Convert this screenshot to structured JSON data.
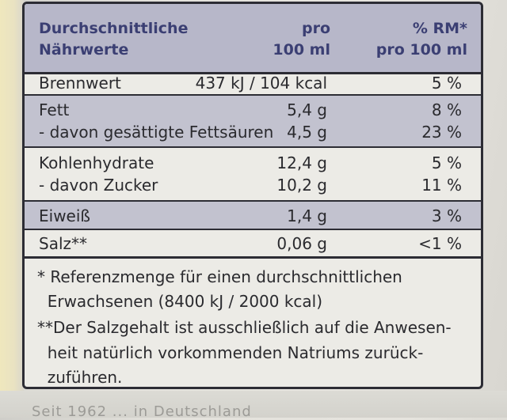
{
  "header": {
    "col1": [
      "Durchschnittliche",
      "Nährwerte"
    ],
    "col2": [
      "pro",
      "100 ml"
    ],
    "col3": [
      "% RM*",
      "pro 100 ml"
    ]
  },
  "rows": [
    {
      "name": [
        "Brennwert"
      ],
      "value": [
        "437 kJ / 104 kcal"
      ],
      "pct": [
        "5 %"
      ]
    },
    {
      "name": [
        "Fett",
        "- davon gesättigte Fettsäuren"
      ],
      "value": [
        "5,4 g",
        "4,5 g"
      ],
      "pct": [
        "8 %",
        "23 %"
      ]
    },
    {
      "name": [
        "Kohlenhydrate",
        "- davon Zucker"
      ],
      "value": [
        "12,4 g",
        "10,2 g"
      ],
      "pct": [
        "5 %",
        "11 %"
      ]
    },
    {
      "name": [
        "Eiweiß"
      ],
      "value": [
        "1,4 g"
      ],
      "pct": [
        "3 %"
      ]
    },
    {
      "name": [
        "Salz**"
      ],
      "value": [
        "0,06 g"
      ],
      "pct": [
        "<1 %"
      ]
    }
  ],
  "footnotes": [
    "* Referenzmenge für einen durchschnittlichen",
    "  Erwachsenen (8400 kJ / 2000 kcal)",
    "**Der Salzgehalt ist ausschließlich auf die Anwesen-",
    "  heit natürlich vorkommenden Natriums zurück-",
    "  zuführen."
  ],
  "bottom_text": "Seit 1962 ... in Deutschland"
}
